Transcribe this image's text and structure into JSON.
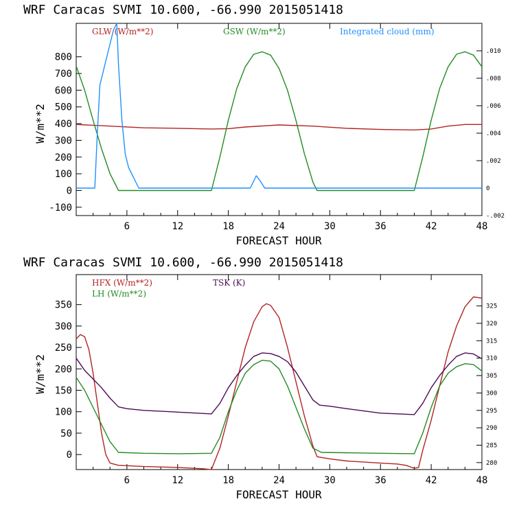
{
  "chart_data": [
    {
      "type": "line",
      "title": "WRF  Caracas SVMI  10.600, -66.990  2015051418",
      "xlabel": "FORECAST HOUR",
      "ylabel": "W/m**2",
      "xlim": [
        0,
        48
      ],
      "ylim": [
        -150,
        1000
      ],
      "y2lim": [
        -0.002,
        0.012
      ],
      "xticks": [
        "6",
        "12",
        "18",
        "24",
        "30",
        "36",
        "42",
        "48"
      ],
      "yticks": [
        "-100",
        "0",
        "100",
        "200",
        "300",
        "400",
        "500",
        "600",
        "700",
        "800"
      ],
      "y2ticks": [
        "-.002",
        "0",
        ".002",
        ".004",
        ".006",
        ".008",
        ".010"
      ],
      "grid": false,
      "series": [
        {
          "name": "GLW (W/m**2)",
          "color": "#b22222",
          "axis": "left",
          "points": [
            [
              0,
              395
            ],
            [
              4,
              385
            ],
            [
              8,
              375
            ],
            [
              12,
              372
            ],
            [
              16,
              368
            ],
            [
              18,
              370
            ],
            [
              20,
              380
            ],
            [
              24,
              392
            ],
            [
              28,
              385
            ],
            [
              32,
              372
            ],
            [
              36,
              365
            ],
            [
              40,
              362
            ],
            [
              42,
              368
            ],
            [
              44,
              385
            ],
            [
              46,
              395
            ],
            [
              48,
              395
            ]
          ]
        },
        {
          "name": "GSW (W/m**2)",
          "color": "#228b22",
          "axis": "left",
          "points": [
            [
              0,
              745
            ],
            [
              1,
              600
            ],
            [
              2,
              420
            ],
            [
              3,
              250
            ],
            [
              4,
              100
            ],
            [
              5,
              0
            ],
            [
              16,
              0
            ],
            [
              17,
              200
            ],
            [
              18,
              420
            ],
            [
              19,
              610
            ],
            [
              20,
              740
            ],
            [
              21,
              815
            ],
            [
              22,
              830
            ],
            [
              23,
              810
            ],
            [
              24,
              730
            ],
            [
              25,
              600
            ],
            [
              26,
              420
            ],
            [
              27,
              220
            ],
            [
              28,
              50
            ],
            [
              28.5,
              0
            ],
            [
              40,
              0
            ],
            [
              41,
              200
            ],
            [
              42,
              420
            ],
            [
              43,
              610
            ],
            [
              44,
              740
            ],
            [
              45,
              815
            ],
            [
              46,
              830
            ],
            [
              47,
              810
            ],
            [
              48,
              740
            ]
          ]
        },
        {
          "name": "Integrated cloud (mm)",
          "color": "#1e90ff",
          "axis": "right",
          "points": [
            [
              0,
              0
            ],
            [
              2.2,
              0
            ],
            [
              2.5,
              0.004
            ],
            [
              2.8,
              0.0075
            ],
            [
              3.2,
              0.0085
            ],
            [
              3.6,
              0.0095
            ],
            [
              4,
              0.0105
            ],
            [
              4.4,
              0.0115
            ],
            [
              4.8,
              0.012
            ],
            [
              5,
              0.009
            ],
            [
              5.4,
              0.005
            ],
            [
              5.8,
              0.0025
            ],
            [
              6.2,
              0.0015
            ],
            [
              6.6,
              0.001
            ],
            [
              7,
              0.0005
            ],
            [
              7.4,
              0
            ],
            [
              20.6,
              0
            ],
            [
              21.3,
              0.0009
            ],
            [
              21.8,
              0.0005
            ],
            [
              22.3,
              0
            ],
            [
              48,
              0
            ]
          ]
        }
      ]
    },
    {
      "type": "line",
      "title": "WRF  Caracas SVMI  10.600, -66.990  2015051418",
      "xlabel": "FORECAST HOUR",
      "ylabel": "W/m**2",
      "xlim": [
        0,
        48
      ],
      "ylim": [
        -35,
        420
      ],
      "y2lim": [
        278,
        334
      ],
      "xticks": [
        "6",
        "12",
        "18",
        "24",
        "30",
        "36",
        "42",
        "48"
      ],
      "yticks": [
        "0",
        "50",
        "100",
        "150",
        "200",
        "250",
        "300",
        "350"
      ],
      "y2ticks": [
        "280",
        "285",
        "290",
        "295",
        "300",
        "305",
        "310",
        "315",
        "320",
        "325"
      ],
      "grid": false,
      "series": [
        {
          "name": "HFX (W/m**2)",
          "color": "#b22222",
          "axis": "left",
          "points": [
            [
              0,
              270
            ],
            [
              0.5,
              280
            ],
            [
              1,
              275
            ],
            [
              1.5,
              245
            ],
            [
              2,
              190
            ],
            [
              2.5,
              120
            ],
            [
              3,
              50
            ],
            [
              3.5,
              0
            ],
            [
              4,
              -20
            ],
            [
              5,
              -25
            ],
            [
              8,
              -28
            ],
            [
              12,
              -30
            ],
            [
              15,
              -33
            ],
            [
              16,
              -38
            ],
            [
              17,
              15
            ],
            [
              18,
              90
            ],
            [
              19,
              170
            ],
            [
              20,
              250
            ],
            [
              21,
              310
            ],
            [
              22,
              345
            ],
            [
              22.5,
              352
            ],
            [
              23,
              348
            ],
            [
              24,
              320
            ],
            [
              25,
              250
            ],
            [
              26,
              170
            ],
            [
              27,
              90
            ],
            [
              28,
              20
            ],
            [
              28.5,
              -5
            ],
            [
              30,
              -10
            ],
            [
              32,
              -15
            ],
            [
              36,
              -20
            ],
            [
              38,
              -22
            ],
            [
              39,
              -25
            ],
            [
              40,
              -32
            ],
            [
              40.5,
              -30
            ],
            [
              41,
              10
            ],
            [
              42,
              80
            ],
            [
              43,
              160
            ],
            [
              44,
              240
            ],
            [
              45,
              300
            ],
            [
              46,
              345
            ],
            [
              47,
              368
            ],
            [
              48,
              365
            ]
          ]
        },
        {
          "name": "LH (W/m**2)",
          "color": "#228b22",
          "axis": "left",
          "points": [
            [
              0,
              180
            ],
            [
              1,
              150
            ],
            [
              2,
              110
            ],
            [
              3,
              70
            ],
            [
              4,
              30
            ],
            [
              5,
              5
            ],
            [
              8,
              3
            ],
            [
              12,
              2
            ],
            [
              16,
              3
            ],
            [
              17,
              40
            ],
            [
              18,
              100
            ],
            [
              19,
              150
            ],
            [
              20,
              190
            ],
            [
              21,
              210
            ],
            [
              22,
              220
            ],
            [
              23,
              218
            ],
            [
              24,
              200
            ],
            [
              25,
              160
            ],
            [
              26,
              110
            ],
            [
              27,
              60
            ],
            [
              28,
              15
            ],
            [
              29,
              5
            ],
            [
              36,
              3
            ],
            [
              40,
              2
            ],
            [
              41,
              50
            ],
            [
              42,
              110
            ],
            [
              43,
              160
            ],
            [
              44,
              190
            ],
            [
              45,
              205
            ],
            [
              46,
              212
            ],
            [
              47,
              210
            ],
            [
              48,
              195
            ]
          ]
        },
        {
          "name": "TSK (K)",
          "color": "#4b0a55",
          "axis": "right",
          "points": [
            [
              0,
              310
            ],
            [
              1,
              306.5
            ],
            [
              2,
              304
            ],
            [
              3,
              301.5
            ],
            [
              4,
              298.5
            ],
            [
              5,
              296
            ],
            [
              6,
              295.5
            ],
            [
              8,
              295
            ],
            [
              12,
              294.5
            ],
            [
              16,
              294
            ],
            [
              17,
              297
            ],
            [
              18,
              301.5
            ],
            [
              19,
              305
            ],
            [
              20,
              308
            ],
            [
              21,
              310.5
            ],
            [
              22,
              311.5
            ],
            [
              23,
              311.3
            ],
            [
              24,
              310.5
            ],
            [
              25,
              309
            ],
            [
              26,
              306
            ],
            [
              27,
              302
            ],
            [
              28,
              298
            ],
            [
              28.8,
              296.5
            ],
            [
              30,
              296.2
            ],
            [
              32,
              295.5
            ],
            [
              36,
              294.2
            ],
            [
              40,
              293.8
            ],
            [
              41,
              297
            ],
            [
              42,
              301.5
            ],
            [
              43,
              305
            ],
            [
              44,
              308
            ],
            [
              45,
              310.5
            ],
            [
              46,
              311.5
            ],
            [
              47,
              311.2
            ],
            [
              48,
              309.8
            ]
          ]
        }
      ]
    }
  ]
}
